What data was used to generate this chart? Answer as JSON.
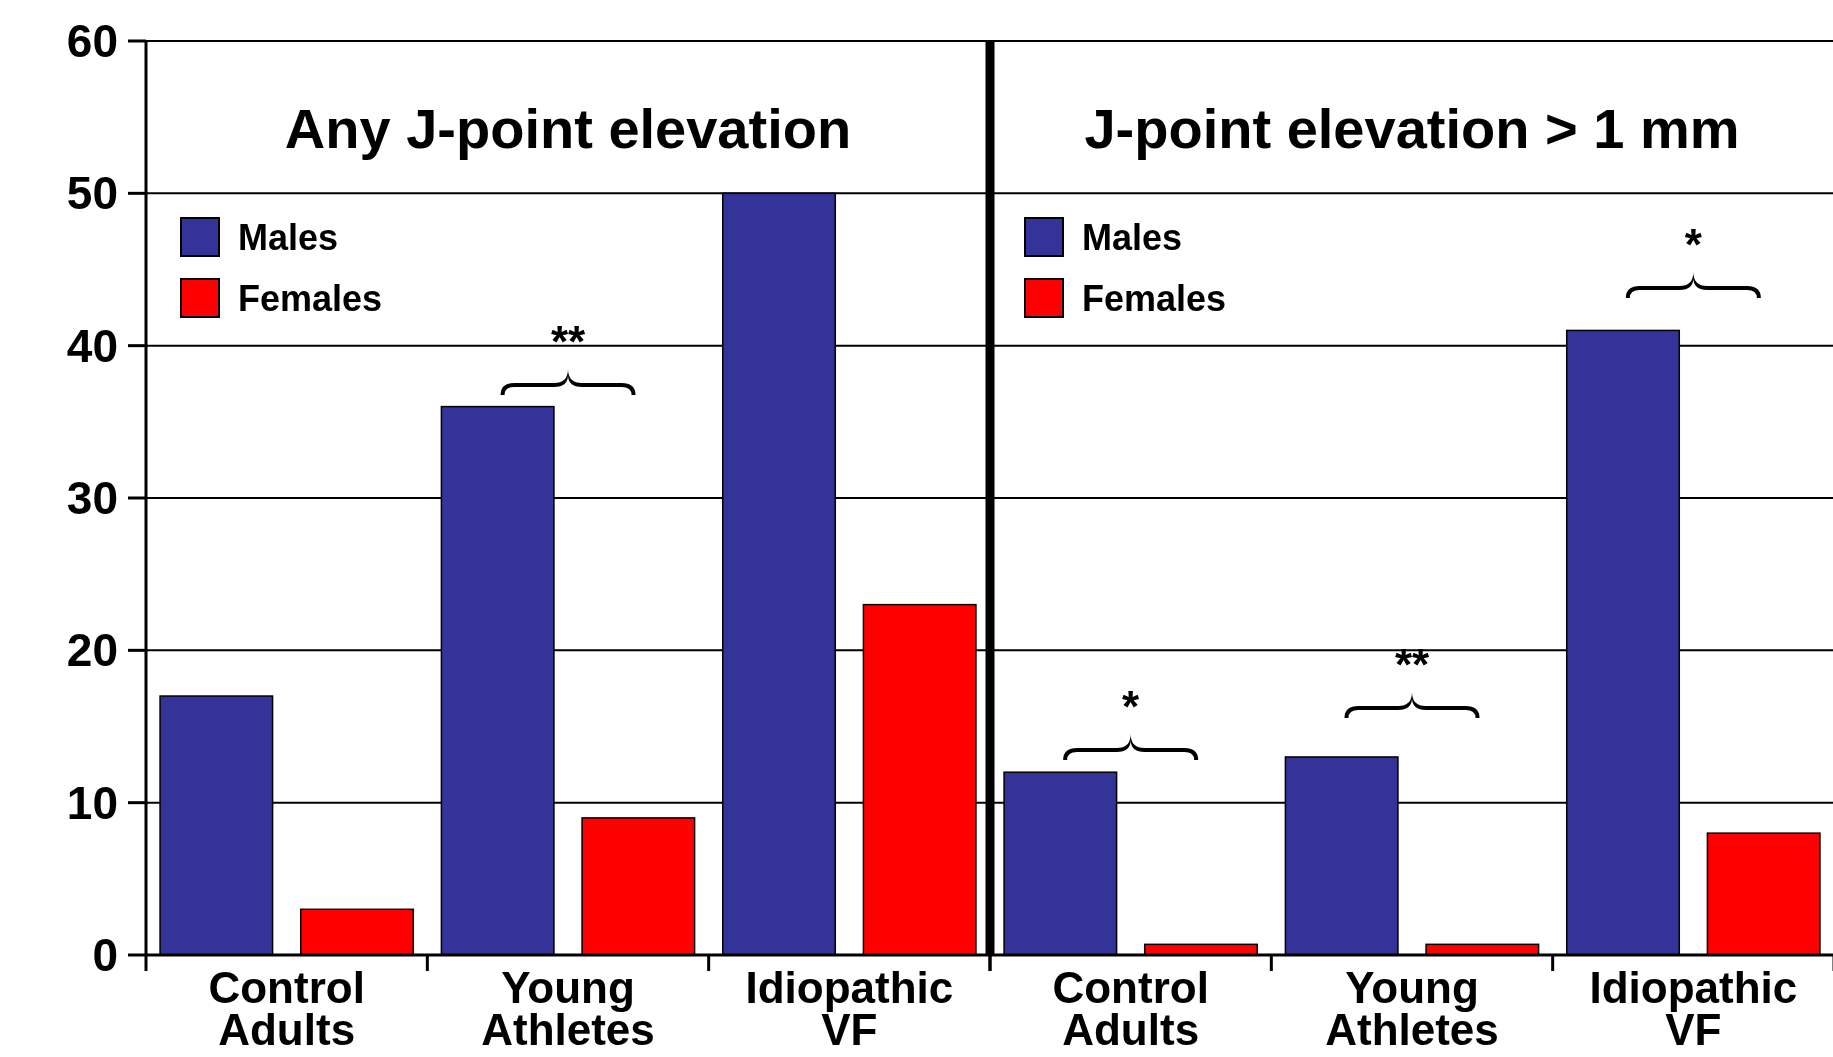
{
  "chart_data": [
    {
      "type": "bar",
      "title": "Any J-point elevation",
      "categories": [
        "Control Adults",
        "Young Athletes",
        "Idiopathic VF"
      ],
      "series": [
        {
          "name": "Males",
          "color": "#333399",
          "values": [
            17,
            36,
            50
          ]
        },
        {
          "name": "Females",
          "color": "#ff0000",
          "values": [
            3,
            9,
            23
          ]
        }
      ],
      "ylim": [
        0,
        60
      ],
      "yticks": [
        0,
        10,
        20,
        30,
        40,
        50,
        60
      ],
      "grid": "y",
      "legend": "top left",
      "annotations": [
        "**"
      ]
    },
    {
      "type": "bar",
      "title": "J-point elevation > 1 mm",
      "categories": [
        "Control Adults",
        "Young Athletes",
        "Idiopathic VF"
      ],
      "series": [
        {
          "name": "Males",
          "color": "#333399",
          "values": [
            12,
            13,
            41
          ]
        },
        {
          "name": "Females",
          "color": "#ff0000",
          "values": [
            0.7,
            0.7,
            8
          ]
        }
      ],
      "ylim": [
        0,
        60
      ],
      "yticks": [
        0,
        10,
        20,
        30,
        40,
        50,
        60
      ],
      "grid": "y",
      "legend": "top left",
      "tick_labels": "x",
      "annotations": [
        "*",
        "**",
        "*"
      ]
    }
  ]
}
